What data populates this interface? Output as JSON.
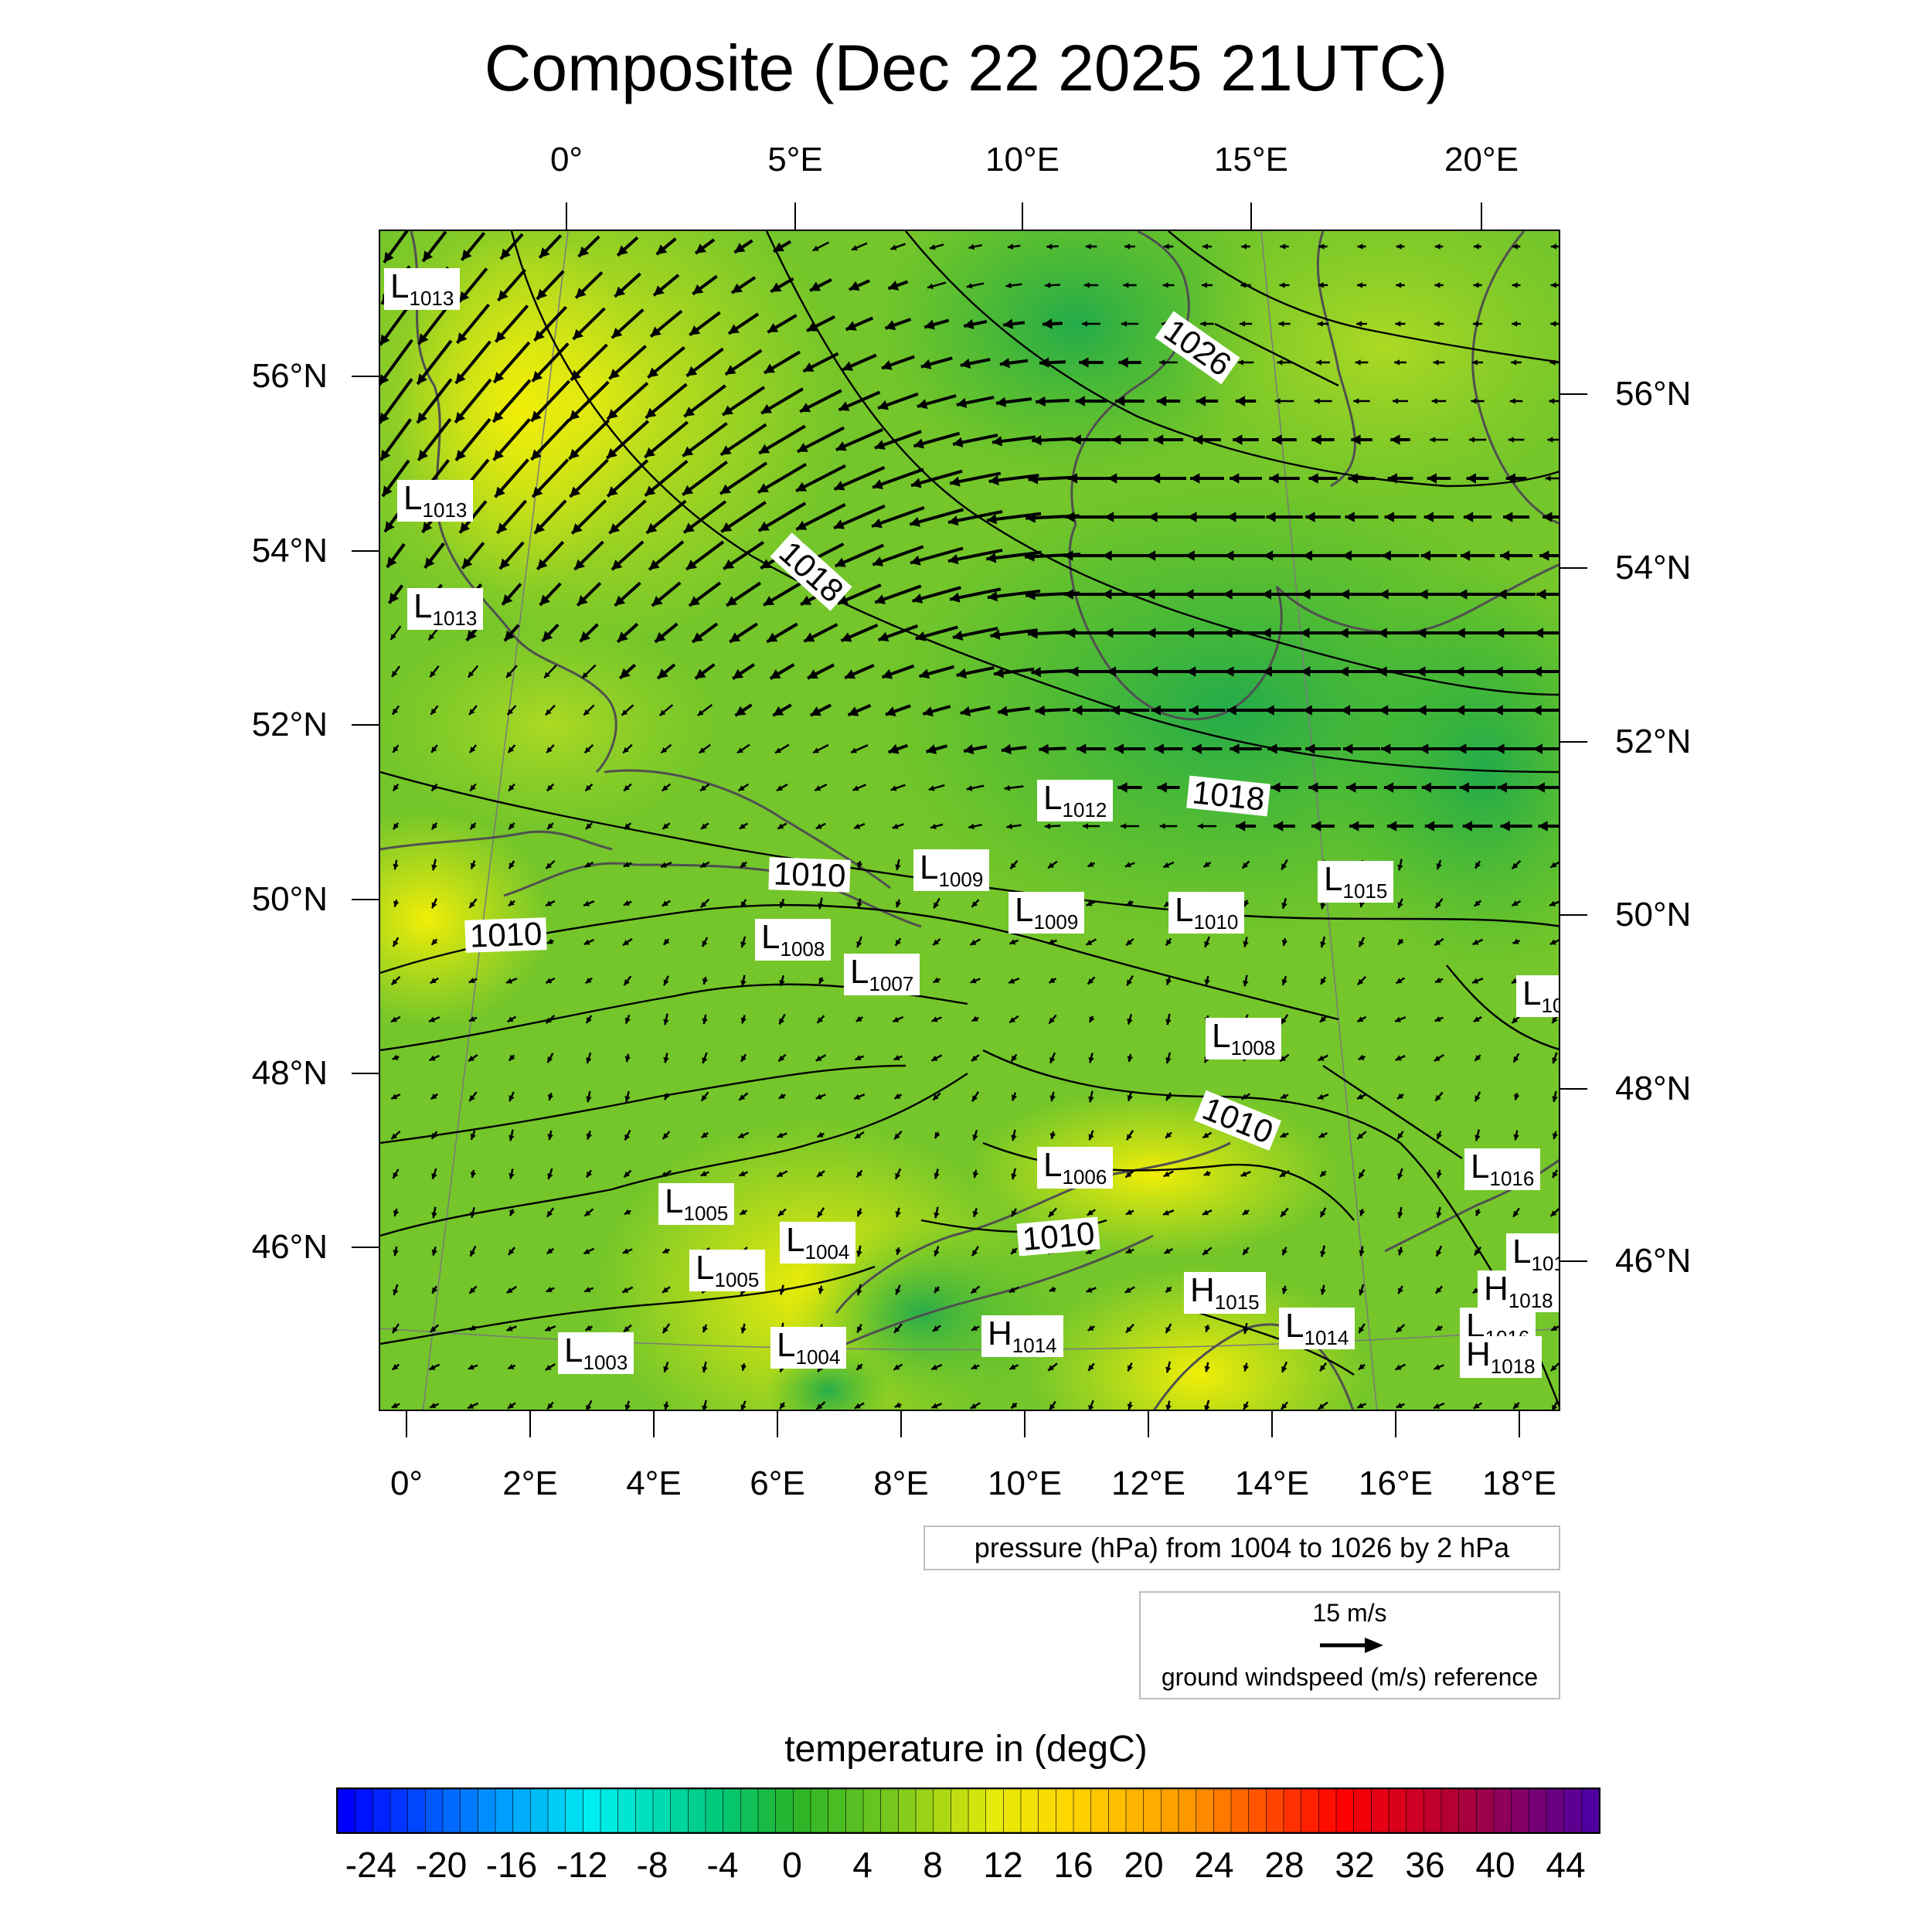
{
  "title": "Composite (Dec 22 2025 21UTC)",
  "top_lon_labels": [
    "0°",
    "5°E",
    "10°E",
    "15°E",
    "20°E"
  ],
  "bottom_lon_labels": [
    "0°",
    "2°E",
    "4°E",
    "6°E",
    "8°E",
    "10°E",
    "12°E",
    "14°E",
    "16°E",
    "18°E"
  ],
  "left_lat_labels": [
    "56°N",
    "54°N",
    "52°N",
    "50°N",
    "48°N",
    "46°N"
  ],
  "right_lat_labels": [
    "56°N",
    "54°N",
    "52°N",
    "50°N",
    "48°N",
    "46°N"
  ],
  "pressure_note": "pressure (hPa) from 1004 to 1026 by 2 hPa",
  "wind_reference": {
    "value": "15 m/s",
    "description": "ground windspeed (m/s) reference"
  },
  "colorbar": {
    "title": "temperature in (degC)",
    "labels": [
      "-24",
      "-20",
      "-16",
      "-12",
      "-8",
      "-4",
      "0",
      "4",
      "8",
      "12",
      "16",
      "20",
      "24",
      "28",
      "32",
      "36",
      "40",
      "44"
    ],
    "range_min": -26,
    "range_max": 46,
    "step": 1
  },
  "contour_labels": [
    "1026",
    "1018",
    "1018",
    "1010",
    "1010",
    "1010",
    "1010"
  ],
  "pressure_centers": [
    {
      "type": "L",
      "value": "1013"
    },
    {
      "type": "L",
      "value": "1013"
    },
    {
      "type": "L",
      "value": "1013"
    },
    {
      "type": "L",
      "value": "1012"
    },
    {
      "type": "L",
      "value": "1009"
    },
    {
      "type": "L",
      "value": "1009"
    },
    {
      "type": "L",
      "value": "1010"
    },
    {
      "type": "L",
      "value": "1015"
    },
    {
      "type": "L",
      "value": "1008"
    },
    {
      "type": "L",
      "value": "1007"
    },
    {
      "type": "L",
      "value": "10"
    },
    {
      "type": "L",
      "value": "1008"
    },
    {
      "type": "L",
      "value": "1006"
    },
    {
      "type": "L",
      "value": "1016"
    },
    {
      "type": "L",
      "value": "1005"
    },
    {
      "type": "L",
      "value": "1004"
    },
    {
      "type": "L",
      "value": "1005"
    },
    {
      "type": "L",
      "value": "101"
    },
    {
      "type": "H",
      "value": "1018"
    },
    {
      "type": "H",
      "value": "1015"
    },
    {
      "type": "L",
      "value": "1003"
    },
    {
      "type": "L",
      "value": "1004"
    },
    {
      "type": "H",
      "value": "1014"
    },
    {
      "type": "L",
      "value": "1014"
    },
    {
      "type": "L",
      "value": "1016"
    },
    {
      "type": "H",
      "value": "1018"
    }
  ],
  "colors": {
    "temp_base": "#3fbf1e",
    "warm": "#e6ea10",
    "cold": "#0bb067",
    "arrow": "#000000"
  }
}
